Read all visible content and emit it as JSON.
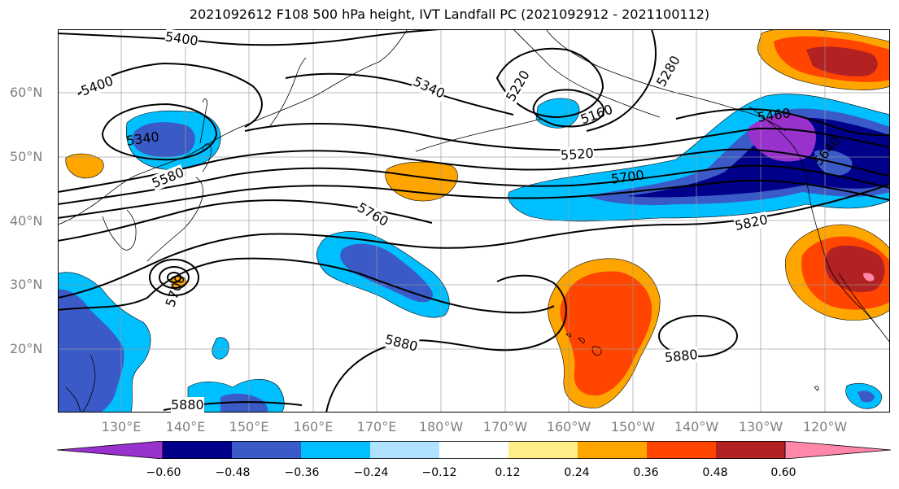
{
  "title": "2021092612 F108 500 hPa height, IVT Landfall PC (2021092912 - 2021100112)",
  "lat_labels": [
    "60°N",
    "50°N",
    "40°N",
    "30°N",
    "20°N"
  ],
  "lon_labels": [
    "130°E",
    "140°E",
    "150°E",
    "160°E",
    "170°E",
    "180°W",
    "170°W",
    "160°W",
    "150°W",
    "140°W",
    "130°W",
    "120°W"
  ],
  "contour_labels": [
    "5400",
    "5400",
    "5340",
    "5340",
    "5220",
    "5280",
    "5160",
    "5460",
    "5520",
    "5580",
    "5640",
    "5700",
    "5760",
    "5820",
    "5700",
    "5880",
    "5880",
    "5880"
  ],
  "colorbar": {
    "colors": [
      "#9932CC",
      "#00008B",
      "#3A5BC7",
      "#00BFFF",
      "#B0E2FF",
      "#FFFFFF",
      "#FFEE88",
      "#FFA500",
      "#FF4500",
      "#B22222",
      "#FF88AA"
    ],
    "tick_labels": [
      "−0.60",
      "−0.48",
      "−0.36",
      "−0.24",
      "−0.12",
      "0.12",
      "0.24",
      "0.36",
      "0.48",
      "0.60"
    ]
  },
  "field_colors": {
    "deep_neg": "#9932CC",
    "dark_neg": "#00008B",
    "mid_neg": "#3A5BC7",
    "light_neg": "#00BFFF",
    "pale_neg": "#B0E2FF",
    "pale_pos": "#FFEE88",
    "light_pos": "#FFA500",
    "mid_pos": "#FF4500",
    "dark_pos": "#B22222",
    "deep_pos": "#FF88AA"
  }
}
